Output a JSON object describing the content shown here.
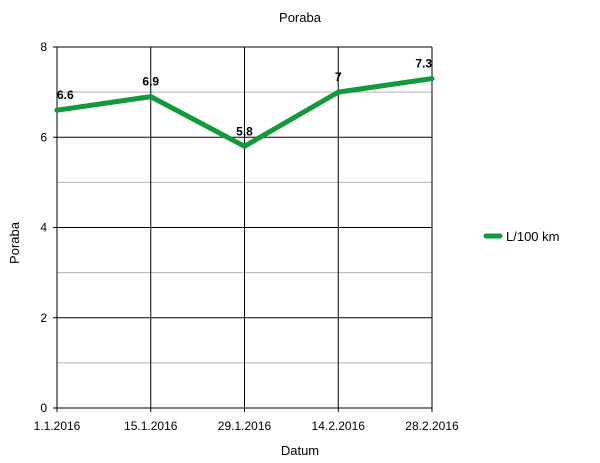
{
  "chart_data": {
    "type": "line",
    "title": "Poraba",
    "xlabel": "Datum",
    "ylabel": "Poraba",
    "categories": [
      "1.1.2016",
      "15.1.2016",
      "29.1.2016",
      "14.2.2016",
      "28.2.2016"
    ],
    "series": [
      {
        "name": "L/100 km",
        "values": [
          6.6,
          6.9,
          5.8,
          7,
          7.3
        ],
        "data_labels": [
          "6.6",
          "6.9",
          "5.8",
          "7",
          "7.3"
        ]
      }
    ],
    "ylim": [
      0,
      8
    ],
    "y_ticks": [
      "0",
      "2",
      "4",
      "6",
      "8"
    ],
    "y_tick_values": [
      0,
      2,
      4,
      6,
      8
    ],
    "y_minor_values": [
      1,
      3,
      5,
      7
    ],
    "grid": true,
    "legend": "right",
    "colors": {
      "series": "#109b3a",
      "major_grid": "#000000",
      "minor_grid": "#b3b3b3"
    }
  }
}
